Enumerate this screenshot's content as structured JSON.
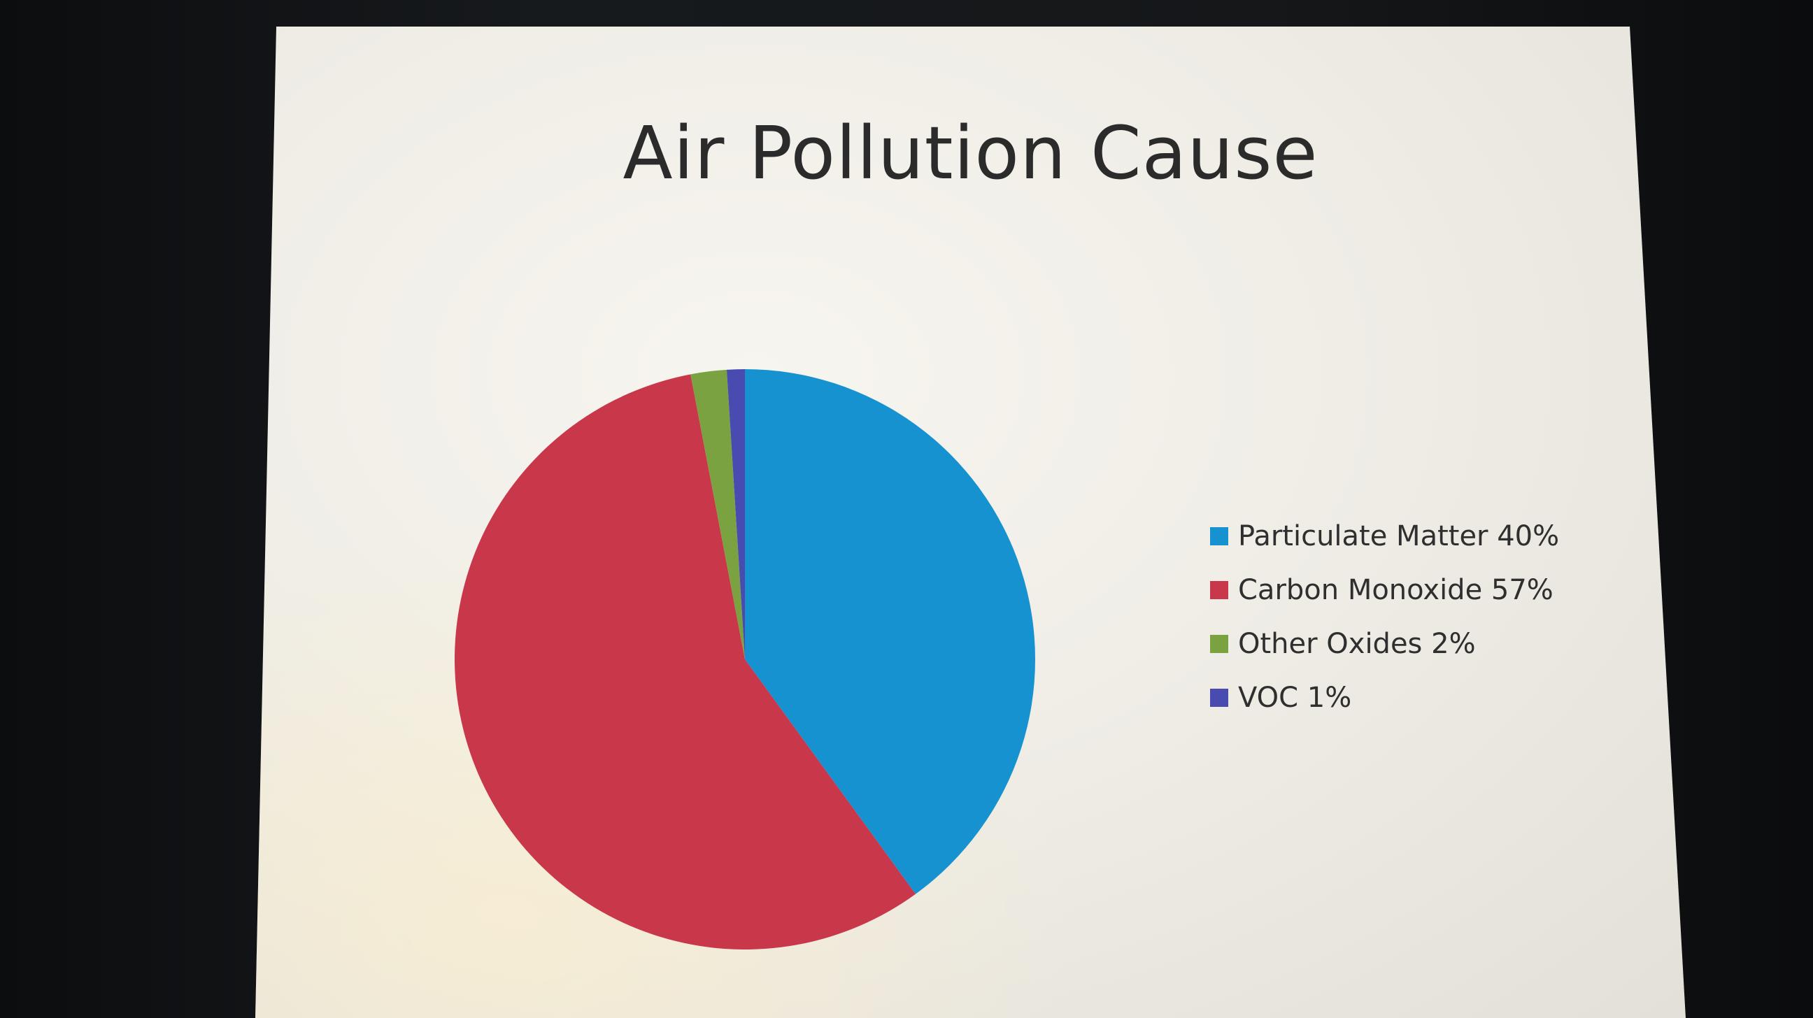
{
  "chart_data": {
    "type": "pie",
    "title": "Air Pollution Cause",
    "slices": [
      {
        "label": "Particulate Matter 40%",
        "value": 40,
        "color": "#1792d0"
      },
      {
        "label": "Carbon Monoxide 57%",
        "value": 57,
        "color": "#c9374a"
      },
      {
        "label": "Other Oxides 2%",
        "value": 2,
        "color": "#7aa240"
      },
      {
        "label": "VOC 1%",
        "value": 1,
        "color": "#4a4bb0"
      }
    ],
    "legend_placement": "right"
  }
}
